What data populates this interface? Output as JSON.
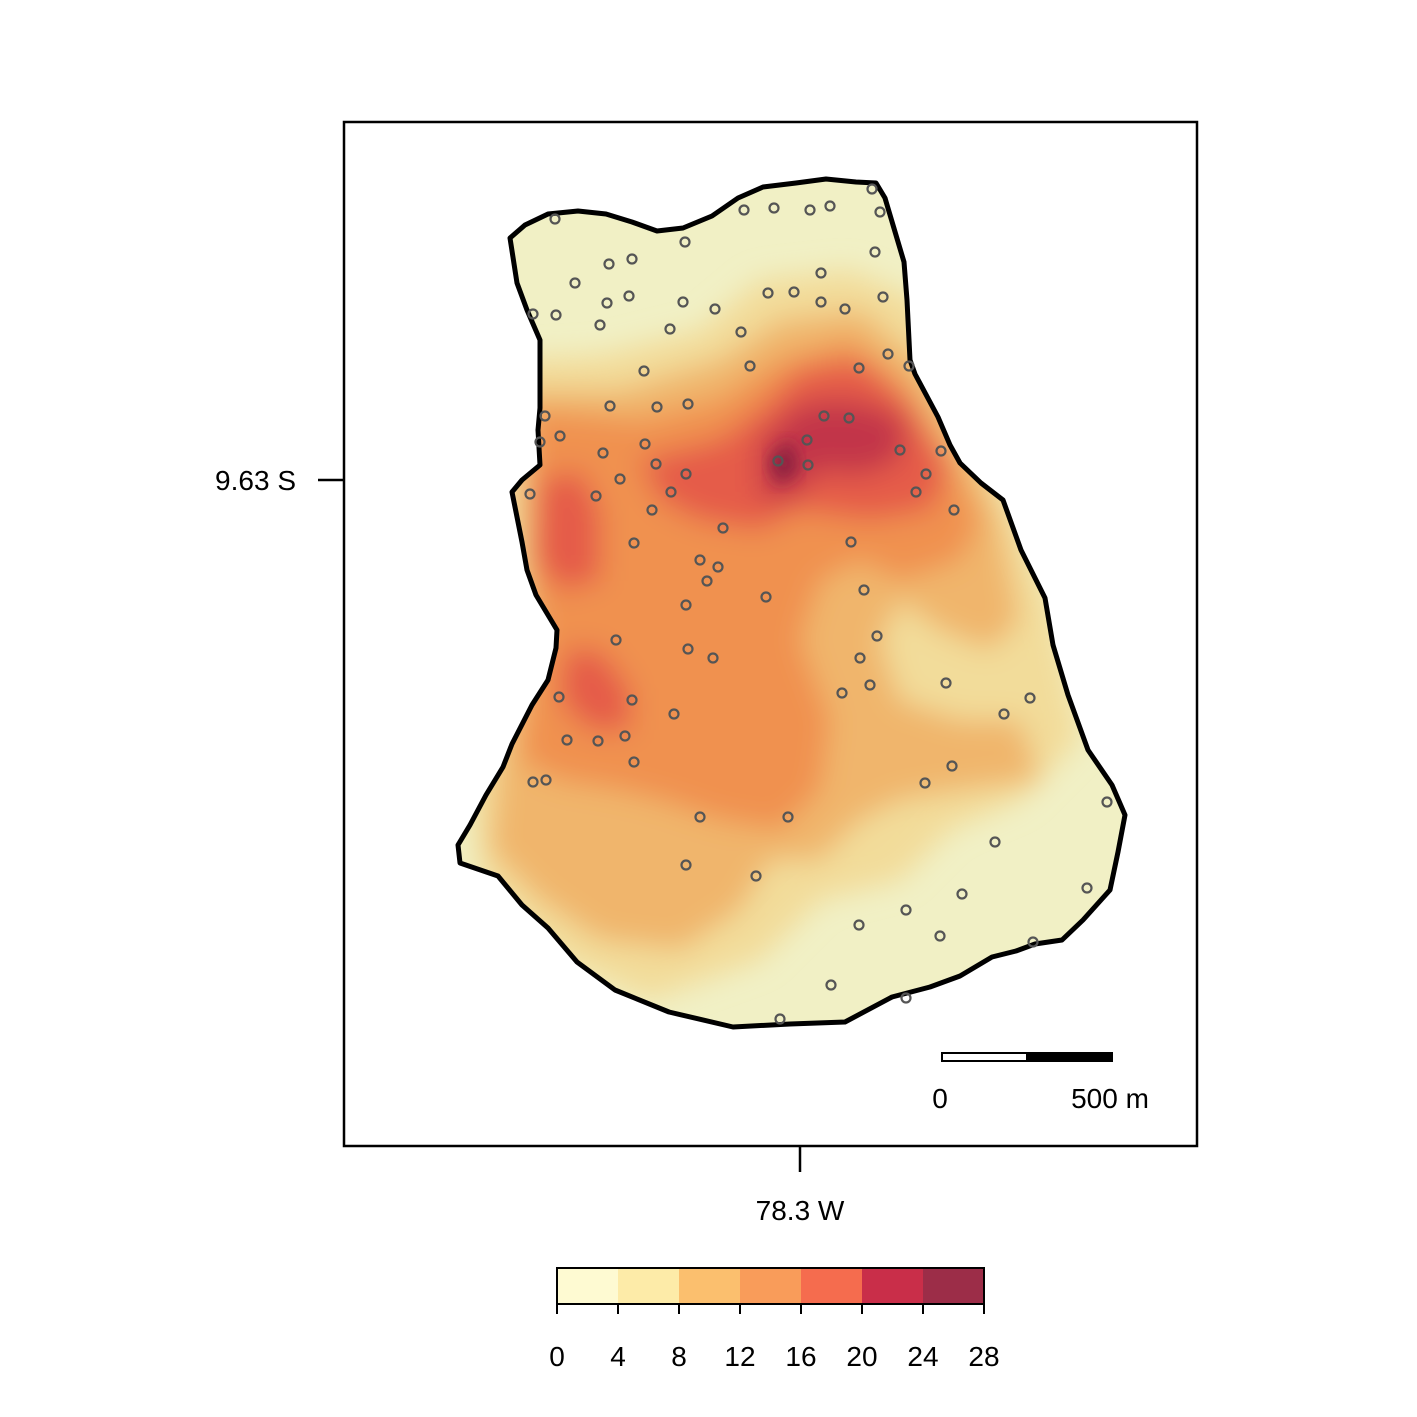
{
  "map": {
    "axis_x": {
      "label": "78.3 W"
    },
    "axis_y": {
      "label": "9.63 S"
    },
    "scalebar": {
      "start_label": "0",
      "end_label": "500 m"
    },
    "legend": {
      "breaks": [
        "0",
        "4",
        "8",
        "12",
        "16",
        "20",
        "24",
        "28"
      ],
      "colors": [
        "#fefad2",
        "#fdeba8",
        "#fbbf6e",
        "#f99c5a",
        "#f56c4e",
        "#c92e49",
        "#9c2d48"
      ]
    },
    "surface_colors": {
      "low": "#f1f0c5",
      "mid_low": "#f2dc9a",
      "mid": "#f0b56c",
      "high": "#f0914f",
      "very_high": "#e55c48",
      "peak": "#c23548",
      "max": "#8e2040"
    },
    "boundary_color": "#000000",
    "sample_point_color": "#555555"
  }
}
